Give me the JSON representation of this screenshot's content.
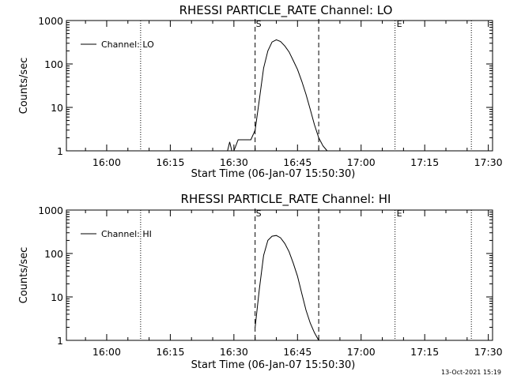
{
  "timestamp": "13-Oct-2021 15:19",
  "chart_data": [
    {
      "type": "line",
      "title": "RHESSI PARTICLE_RATE Channel: LO",
      "xlabel": "Start Time (06-Jan-07 15:50:30)",
      "ylabel": "Counts/sec",
      "yscale": "log",
      "ylim": [
        1,
        1000
      ],
      "xlim": [
        "15:50:30",
        "17:31"
      ],
      "xticks": [
        "16:00",
        "16:15",
        "16:30",
        "16:45",
        "17:00",
        "17:15",
        "17:30"
      ],
      "yticks": [
        "1",
        "10",
        "100",
        "1000"
      ],
      "legend": "top-left",
      "markers": {
        "start_label": "S",
        "end_label": "E"
      },
      "dashed_lines_x": [
        "16:35",
        "16:50"
      ],
      "dotted_lines_x": [
        "16:08",
        "17:08",
        "17:26"
      ],
      "series": [
        {
          "name": "Channel: LO",
          "x": [
            "16:28:30",
            "16:29",
            "16:29:30",
            "16:30",
            "16:31",
            "16:32",
            "16:33",
            "16:34",
            "16:35",
            "16:36",
            "16:37",
            "16:38",
            "16:39",
            "16:40",
            "16:41",
            "16:42",
            "16:43",
            "16:44",
            "16:45",
            "16:46",
            "16:47",
            "16:48",
            "16:49",
            "16:50",
            "16:51",
            "16:52"
          ],
          "y": [
            1,
            1.6,
            1,
            1,
            1.8,
            1.8,
            1.8,
            1.8,
            3,
            15,
            80,
            200,
            320,
            360,
            330,
            260,
            190,
            120,
            75,
            40,
            20,
            9,
            4,
            2,
            1.3,
            1
          ]
        }
      ]
    },
    {
      "type": "line",
      "title": "RHESSI PARTICLE_RATE Channel: HI",
      "xlabel": "Start Time (06-Jan-07 15:50:30)",
      "ylabel": "Counts/sec",
      "yscale": "log",
      "ylim": [
        1,
        1000
      ],
      "xlim": [
        "15:50:30",
        "17:31"
      ],
      "xticks": [
        "16:00",
        "16:15",
        "16:30",
        "16:45",
        "17:00",
        "17:15",
        "17:30"
      ],
      "yticks": [
        "1",
        "10",
        "100",
        "1000"
      ],
      "legend": "top-left",
      "markers": {
        "start_label": "S",
        "end_label": "E"
      },
      "dashed_lines_x": [
        "16:35",
        "16:50"
      ],
      "dotted_lines_x": [
        "16:08",
        "17:08",
        "17:26"
      ],
      "series": [
        {
          "name": "Channel: HI",
          "x": [
            "16:35",
            "16:36",
            "16:37",
            "16:38",
            "16:39",
            "16:40",
            "16:41",
            "16:42",
            "16:43",
            "16:44",
            "16:45",
            "16:46",
            "16:47",
            "16:48",
            "16:49",
            "16:50"
          ],
          "y": [
            2,
            15,
            90,
            200,
            250,
            260,
            230,
            170,
            110,
            60,
            30,
            12,
            5,
            2.5,
            1.5,
            1
          ]
        }
      ]
    }
  ]
}
